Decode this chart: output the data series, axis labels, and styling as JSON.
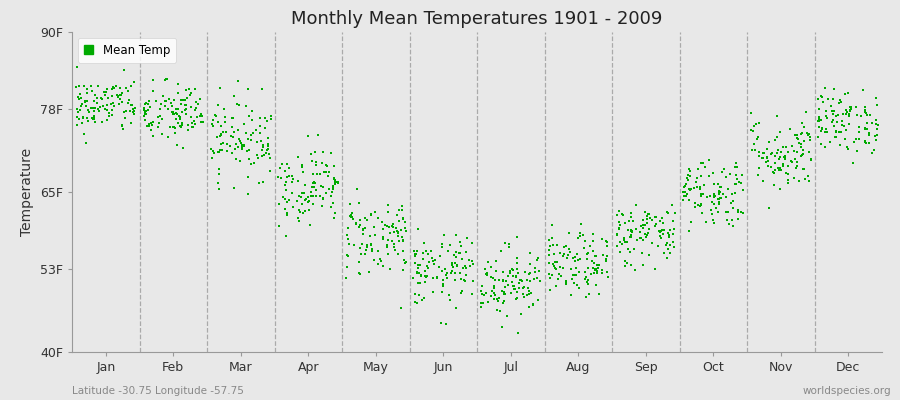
{
  "title": "Monthly Mean Temperatures 1901 - 2009",
  "ylabel": "Temperature",
  "ylim": [
    40,
    90
  ],
  "yticks": [
    40,
    53,
    65,
    78,
    90
  ],
  "ytick_labels": [
    "40F",
    "53F",
    "65F",
    "78F",
    "90F"
  ],
  "month_labels": [
    "Jan",
    "Feb",
    "Mar",
    "Apr",
    "May",
    "Jun",
    "Jul",
    "Aug",
    "Sep",
    "Oct",
    "Nov",
    "Dec"
  ],
  "dot_color": "#00aa00",
  "bg_color": "#e8e8e8",
  "legend_label": "Mean Temp",
  "footnote_left": "Latitude -30.75 Longitude -57.75",
  "footnote_right": "worldspecies.org",
  "monthly_means": [
    78.5,
    77.2,
    73.5,
    66.0,
    58.0,
    52.5,
    51.0,
    53.5,
    58.5,
    65.0,
    71.0,
    76.0
  ],
  "monthly_stds": [
    2.2,
    2.5,
    3.2,
    3.0,
    3.2,
    2.8,
    2.8,
    2.5,
    2.5,
    2.8,
    3.0,
    2.5
  ],
  "n_years": 109,
  "seed": 42,
  "dashed_line_color": "#aaaaaa",
  "spine_color": "#999999"
}
